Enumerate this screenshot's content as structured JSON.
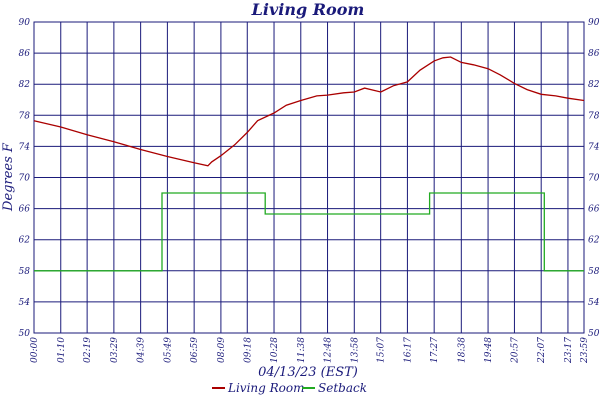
{
  "chart_data": {
    "type": "line",
    "title": "Living Room",
    "xlabel": "04/13/23 (EST)",
    "ylabel": "Degrees F",
    "ylim": [
      50,
      90
    ],
    "yticks": [
      "50",
      "54",
      "58",
      "62",
      "66",
      "70",
      "74",
      "78",
      "82",
      "86",
      "90"
    ],
    "xlim": [
      "00:00",
      "23:59"
    ],
    "xticks": [
      "00:00",
      "01:10",
      "02:19",
      "03:29",
      "04:39",
      "05:49",
      "06:59",
      "08:09",
      "09:18",
      "10:28",
      "11:38",
      "12:48",
      "13:58",
      "15:07",
      "16:17",
      "17:27",
      "18:38",
      "19:48",
      "20:57",
      "22:07",
      "23:17",
      "23:59"
    ],
    "grid": true,
    "legend_position": "bottom",
    "series": [
      {
        "name": "Living Room",
        "color": "#aa0000",
        "points": [
          [
            "00:00",
            77.3
          ],
          [
            "01:10",
            76.5
          ],
          [
            "02:19",
            75.5
          ],
          [
            "03:29",
            74.6
          ],
          [
            "04:39",
            73.6
          ],
          [
            "05:49",
            72.7
          ],
          [
            "06:59",
            71.9
          ],
          [
            "07:35",
            71.5
          ],
          [
            "07:45",
            72.0
          ],
          [
            "08:09",
            72.8
          ],
          [
            "08:45",
            74.2
          ],
          [
            "09:18",
            75.8
          ],
          [
            "09:45",
            77.3
          ],
          [
            "10:28",
            78.3
          ],
          [
            "11:00",
            79.3
          ],
          [
            "11:38",
            79.9
          ],
          [
            "12:20",
            80.5
          ],
          [
            "12:48",
            80.6
          ],
          [
            "13:30",
            80.9
          ],
          [
            "13:58",
            81.0
          ],
          [
            "14:25",
            81.5
          ],
          [
            "15:07",
            81.0
          ],
          [
            "15:40",
            81.8
          ],
          [
            "16:17",
            82.3
          ],
          [
            "16:50",
            83.8
          ],
          [
            "17:27",
            85.0
          ],
          [
            "17:50",
            85.4
          ],
          [
            "18:10",
            85.5
          ],
          [
            "18:38",
            84.8
          ],
          [
            "19:10",
            84.5
          ],
          [
            "19:48",
            84.0
          ],
          [
            "20:20",
            83.2
          ],
          [
            "20:57",
            82.1
          ],
          [
            "21:30",
            81.3
          ],
          [
            "22:07",
            80.7
          ],
          [
            "22:45",
            80.5
          ],
          [
            "23:17",
            80.2
          ],
          [
            "23:59",
            79.9
          ]
        ]
      },
      {
        "name": "Setback",
        "color": "#22aa22",
        "points": [
          [
            "00:00",
            58
          ],
          [
            "05:35",
            58
          ],
          [
            "05:35",
            68
          ],
          [
            "10:05",
            68
          ],
          [
            "10:05",
            65.3
          ],
          [
            "17:15",
            65.3
          ],
          [
            "17:15",
            68
          ],
          [
            "22:15",
            68
          ],
          [
            "22:15",
            58
          ],
          [
            "23:59",
            58
          ]
        ]
      }
    ]
  }
}
